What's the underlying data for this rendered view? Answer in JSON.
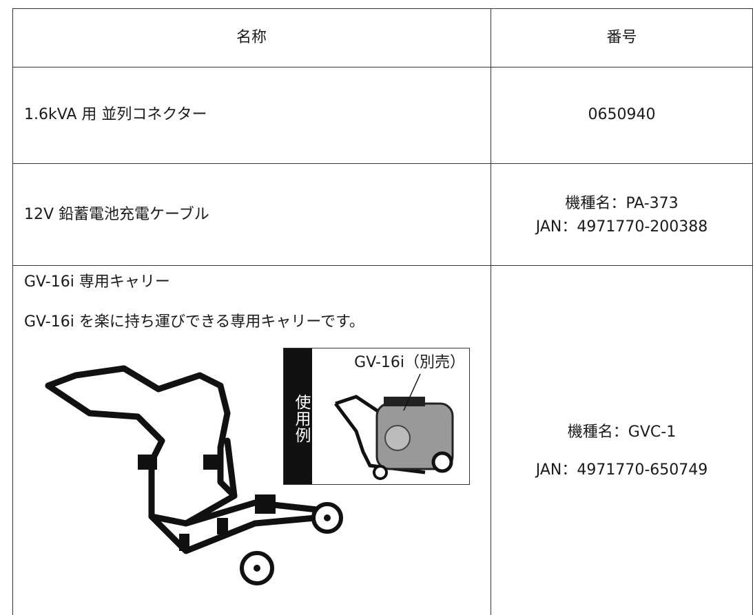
{
  "table": {
    "header": [
      "名称",
      "番号"
    ],
    "rows": [
      {
        "name": "1.6kVA 用 並列コネクター",
        "number": [
          "0650940"
        ]
      },
      {
        "name": "12V 鉛蓄電池充電ケーブル",
        "number": [
          "機種名：PA-373",
          "JAN：4971770-200388"
        ]
      },
      {
        "name": "GV-16i 専用キャリー",
        "description": "GV-16i を楽に持ち運びできる専用キャリーです。",
        "usage_label": "使用例",
        "usage_caption": "GV-16i（別売）",
        "number": [
          "機種名：GVC-1",
          "JAN：4971770-650749"
        ]
      }
    ]
  }
}
